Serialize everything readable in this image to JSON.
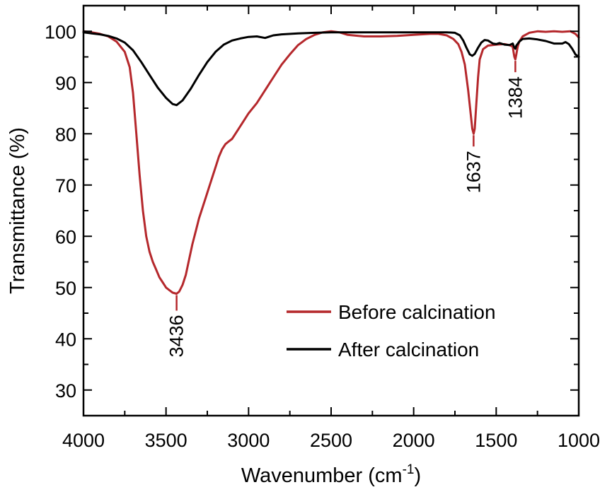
{
  "chart_data": {
    "type": "line",
    "title": "",
    "xlabel": "Wavenumber (cm",
    "xlabel_sup": "-1",
    "xlabel_close": ")",
    "ylabel": "Transmittance (%)",
    "xlim": [
      4000,
      1000
    ],
    "ylim": [
      25,
      105
    ],
    "x_reversed": true,
    "grid": false,
    "legend_position": "lower-right",
    "xticks": [
      4000,
      3500,
      3000,
      2500,
      2000,
      1500,
      1000
    ],
    "xtick_labels": [
      "4000",
      "3500",
      "3000",
      "2500",
      "2000",
      "1500",
      "1000"
    ],
    "yticks": [
      30,
      40,
      50,
      60,
      70,
      80,
      90,
      100
    ],
    "ytick_labels": [
      "30",
      "40",
      "50",
      "60",
      "70",
      "80",
      "90",
      "100"
    ],
    "series": [
      {
        "name": "Before calcination",
        "color": "#b5282c",
        "points": [
          [
            4000,
            100
          ],
          [
            3950,
            99.8
          ],
          [
            3900,
            99.5
          ],
          [
            3850,
            99
          ],
          [
            3800,
            98
          ],
          [
            3750,
            96
          ],
          [
            3720,
            93
          ],
          [
            3700,
            88
          ],
          [
            3680,
            80
          ],
          [
            3660,
            72
          ],
          [
            3640,
            65
          ],
          [
            3620,
            60
          ],
          [
            3600,
            57
          ],
          [
            3580,
            55
          ],
          [
            3560,
            53.5
          ],
          [
            3540,
            52
          ],
          [
            3520,
            51
          ],
          [
            3500,
            50
          ],
          [
            3480,
            49.5
          ],
          [
            3460,
            49
          ],
          [
            3436,
            48.8
          ],
          [
            3420,
            49.2
          ],
          [
            3400,
            50.5
          ],
          [
            3380,
            52.5
          ],
          [
            3360,
            55.5
          ],
          [
            3340,
            58.5
          ],
          [
            3320,
            61
          ],
          [
            3300,
            63.5
          ],
          [
            3280,
            65.5
          ],
          [
            3260,
            67.5
          ],
          [
            3240,
            69.5
          ],
          [
            3220,
            71.5
          ],
          [
            3200,
            73.5
          ],
          [
            3180,
            75.5
          ],
          [
            3160,
            77
          ],
          [
            3140,
            78
          ],
          [
            3120,
            78.5
          ],
          [
            3100,
            79
          ],
          [
            3080,
            80
          ],
          [
            3050,
            81.5
          ],
          [
            3000,
            84
          ],
          [
            2950,
            86
          ],
          [
            2900,
            88.5
          ],
          [
            2850,
            91
          ],
          [
            2800,
            93.5
          ],
          [
            2750,
            95.5
          ],
          [
            2700,
            97.3
          ],
          [
            2650,
            98.5
          ],
          [
            2600,
            99.3
          ],
          [
            2550,
            99.8
          ],
          [
            2500,
            100
          ],
          [
            2450,
            99.8
          ],
          [
            2400,
            99.3
          ],
          [
            2300,
            99
          ],
          [
            2200,
            99
          ],
          [
            2100,
            99.1
          ],
          [
            2000,
            99.3
          ],
          [
            1900,
            99.5
          ],
          [
            1850,
            99.5
          ],
          [
            1800,
            99.2
          ],
          [
            1760,
            98.5
          ],
          [
            1730,
            97.5
          ],
          [
            1710,
            96
          ],
          [
            1690,
            93.5
          ],
          [
            1670,
            88.5
          ],
          [
            1655,
            84
          ],
          [
            1645,
            81
          ],
          [
            1637,
            80
          ],
          [
            1630,
            81
          ],
          [
            1620,
            86
          ],
          [
            1610,
            91
          ],
          [
            1600,
            94.5
          ],
          [
            1580,
            96.5
          ],
          [
            1550,
            97.2
          ],
          [
            1500,
            97.4
          ],
          [
            1450,
            97.5
          ],
          [
            1420,
            97.3
          ],
          [
            1400,
            97
          ],
          [
            1395,
            96
          ],
          [
            1390,
            95
          ],
          [
            1384,
            94.5
          ],
          [
            1378,
            95.5
          ],
          [
            1370,
            97
          ],
          [
            1360,
            98
          ],
          [
            1340,
            99
          ],
          [
            1300,
            99.7
          ],
          [
            1250,
            100
          ],
          [
            1200,
            99.9
          ],
          [
            1150,
            100
          ],
          [
            1100,
            99.9
          ],
          [
            1050,
            100
          ],
          [
            1020,
            99.5
          ],
          [
            1000,
            98.8
          ]
        ]
      },
      {
        "name": "After calcination",
        "color": "#000000",
        "points": [
          [
            4000,
            99.8
          ],
          [
            3950,
            99.6
          ],
          [
            3900,
            99.4
          ],
          [
            3850,
            99.1
          ],
          [
            3800,
            98.6
          ],
          [
            3750,
            97.8
          ],
          [
            3700,
            96.3
          ],
          [
            3650,
            94
          ],
          [
            3600,
            91.5
          ],
          [
            3550,
            89
          ],
          [
            3500,
            87
          ],
          [
            3460,
            85.8
          ],
          [
            3436,
            85.6
          ],
          [
            3400,
            86.5
          ],
          [
            3350,
            88.8
          ],
          [
            3300,
            91.5
          ],
          [
            3250,
            94
          ],
          [
            3200,
            96
          ],
          [
            3150,
            97.4
          ],
          [
            3100,
            98.2
          ],
          [
            3050,
            98.6
          ],
          [
            3000,
            98.9
          ],
          [
            2950,
            99
          ],
          [
            2900,
            98.7
          ],
          [
            2850,
            99.2
          ],
          [
            2800,
            99.4
          ],
          [
            2700,
            99.6
          ],
          [
            2600,
            99.7
          ],
          [
            2500,
            99.8
          ],
          [
            2400,
            99.8
          ],
          [
            2300,
            99.8
          ],
          [
            2200,
            99.8
          ],
          [
            2100,
            99.8
          ],
          [
            2000,
            99.8
          ],
          [
            1900,
            99.8
          ],
          [
            1800,
            99.8
          ],
          [
            1750,
            99.7
          ],
          [
            1720,
            99.2
          ],
          [
            1700,
            98.2
          ],
          [
            1680,
            96.8
          ],
          [
            1660,
            95.5
          ],
          [
            1645,
            95.2
          ],
          [
            1630,
            95.6
          ],
          [
            1610,
            96.8
          ],
          [
            1590,
            97.8
          ],
          [
            1570,
            98.3
          ],
          [
            1550,
            98.2
          ],
          [
            1520,
            97.6
          ],
          [
            1500,
            97.5
          ],
          [
            1480,
            97.7
          ],
          [
            1450,
            97.4
          ],
          [
            1420,
            97.3
          ],
          [
            1400,
            97.6
          ],
          [
            1390,
            96.8
          ],
          [
            1384,
            96.6
          ],
          [
            1378,
            97.2
          ],
          [
            1360,
            98
          ],
          [
            1340,
            98.5
          ],
          [
            1300,
            98.6
          ],
          [
            1250,
            98.4
          ],
          [
            1200,
            98.1
          ],
          [
            1150,
            97.6
          ],
          [
            1100,
            97.6
          ],
          [
            1080,
            97.9
          ],
          [
            1060,
            97.5
          ],
          [
            1040,
            96.6
          ],
          [
            1020,
            95.5
          ],
          [
            1000,
            95
          ]
        ]
      }
    ],
    "annotations": [
      {
        "label": "3436",
        "x": 3436,
        "series": 0
      },
      {
        "label": "1637",
        "x": 1637,
        "series": 0
      },
      {
        "label": "1384",
        "x": 1384,
        "series": 0
      }
    ]
  }
}
